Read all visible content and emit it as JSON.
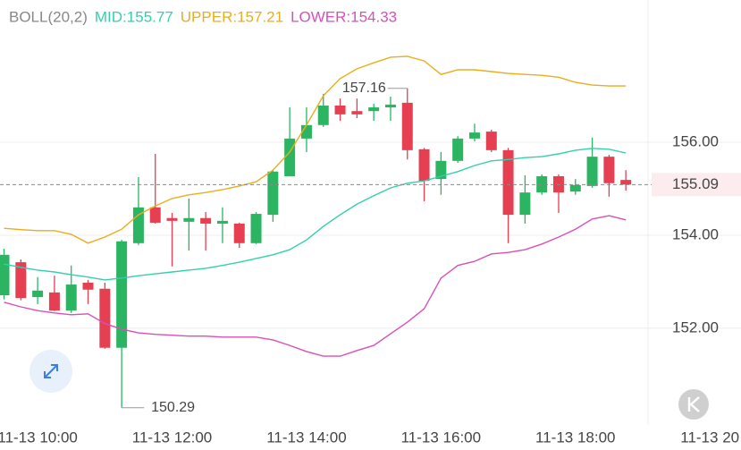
{
  "chart_data": {
    "type": "candlestick",
    "title": "BOLL(20,2)",
    "xlim": [
      -0.24,
      38.32
    ],
    "xticks": [
      {
        "value": 2,
        "label": "11-13 10:00"
      },
      {
        "value": 10,
        "label": "11-13 12:00"
      },
      {
        "value": 18,
        "label": "11-13 14:00"
      },
      {
        "value": 26,
        "label": "11-13 16:00"
      },
      {
        "value": 34,
        "label": "11-13 18:00"
      },
      {
        "value": 42,
        "label": "11-13 20"
      }
    ],
    "ylim": [
      149.92,
      159.06
    ],
    "yticks": [
      {
        "value": 152,
        "label": "152.00"
      },
      {
        "value": 154,
        "label": "154.00"
      },
      {
        "value": 156,
        "label": "156.00"
      }
    ],
    "grid": true,
    "up_color": "#2bb563",
    "down_color": "#e63f51",
    "open": [
      152.71,
      153.42,
      152.67,
      152.77,
      152.38,
      152.98,
      152.85,
      151.58,
      153.83,
      154.6,
      154.37,
      154.29,
      154.37,
      154.25,
      154.25,
      153.83,
      154.44,
      155.27,
      156.08,
      156.37,
      156.79,
      156.67,
      156.67,
      156.75,
      156.85,
      155.85,
      155.21,
      155.6,
      156.08,
      156.23,
      155.83,
      154.44,
      154.92,
      155.27,
      154.94,
      155.06,
      155.69,
      155.19
    ],
    "high": [
      153.71,
      153.48,
      153.1,
      153.13,
      153.35,
      153.04,
      152.98,
      153.9,
      155.25,
      155.75,
      154.48,
      154.79,
      154.5,
      154.6,
      154.27,
      154.5,
      155.4,
      156.75,
      156.75,
      157.04,
      156.94,
      156.94,
      156.83,
      156.98,
      157.16,
      155.88,
      155.79,
      156.13,
      156.4,
      156.27,
      155.88,
      155.29,
      155.31,
      155.31,
      155.21,
      156.1,
      155.73,
      155.4
    ],
    "low": [
      152.62,
      152.6,
      152.52,
      152.37,
      152.33,
      152.52,
      151.56,
      150.29,
      153.79,
      154.25,
      153.33,
      153.67,
      153.67,
      153.83,
      153.73,
      153.81,
      154.29,
      155.27,
      155.79,
      156.33,
      156.46,
      156.52,
      156.46,
      156.46,
      155.63,
      154.73,
      154.87,
      155.56,
      156.02,
      155.79,
      153.83,
      154.25,
      154.87,
      154.48,
      154.87,
      155.02,
      154.83,
      154.96
    ],
    "close": [
      153.58,
      152.65,
      152.81,
      152.38,
      152.94,
      152.83,
      151.58,
      153.87,
      154.6,
      154.27,
      154.31,
      154.37,
      154.25,
      154.31,
      153.83,
      154.46,
      155.37,
      156.08,
      156.37,
      156.79,
      156.6,
      156.6,
      156.75,
      156.81,
      155.83,
      155.17,
      155.6,
      156.08,
      156.21,
      155.83,
      154.44,
      154.92,
      155.27,
      154.92,
      155.08,
      155.69,
      155.12,
      155.09
    ],
    "series": [
      {
        "name": "MID:",
        "color": "#33cfae",
        "values": [
          153.38,
          153.31,
          153.25,
          153.21,
          153.15,
          153.1,
          153.04,
          153.08,
          153.13,
          153.17,
          153.21,
          153.25,
          153.29,
          153.35,
          153.42,
          153.5,
          153.58,
          153.69,
          153.9,
          154.19,
          154.44,
          154.67,
          154.85,
          155.02,
          155.12,
          155.17,
          155.27,
          155.37,
          155.5,
          155.6,
          155.63,
          155.67,
          155.69,
          155.75,
          155.83,
          155.87,
          155.85,
          155.77
        ]
      },
      {
        "name": "UPPER:",
        "color": "#e8ae1c",
        "values": [
          154.15,
          154.12,
          154.1,
          154.1,
          154.02,
          153.83,
          153.96,
          154.13,
          154.44,
          154.63,
          154.79,
          154.87,
          154.92,
          154.98,
          155.06,
          155.15,
          155.4,
          155.79,
          156.37,
          157.0,
          157.37,
          157.58,
          157.71,
          157.83,
          157.85,
          157.75,
          157.46,
          157.56,
          157.56,
          157.52,
          157.48,
          157.46,
          157.44,
          157.4,
          157.29,
          157.23,
          157.21,
          157.21
        ]
      },
      {
        "name": "LOWER:",
        "color": "#d94fb8",
        "values": [
          152.56,
          152.46,
          152.38,
          152.33,
          152.29,
          152.31,
          152.1,
          151.98,
          151.9,
          151.87,
          151.85,
          151.83,
          151.83,
          151.81,
          151.81,
          151.81,
          151.75,
          151.63,
          151.5,
          151.4,
          151.4,
          151.52,
          151.63,
          151.88,
          152.13,
          152.42,
          153.08,
          153.35,
          153.44,
          153.6,
          153.63,
          153.69,
          153.81,
          153.96,
          154.13,
          154.35,
          154.42,
          154.33
        ]
      }
    ]
  }
}
